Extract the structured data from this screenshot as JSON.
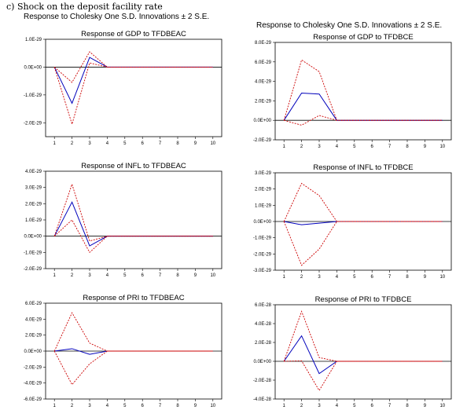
{
  "heading": "c)   Shock on the deposit facility rate",
  "column_headers": [
    "Response to Cholesky One S.D. Innovations ± 2 S.E.",
    "Response to Cholesky One S.D. Innovations ± 2 S.E."
  ],
  "chart_data": [
    {
      "type": "line",
      "title": "Response of GDP to TFDBEAC",
      "x": [
        1,
        2,
        3,
        4,
        5,
        6,
        7,
        8,
        9,
        10
      ],
      "ylim": [
        -2.5e-29,
        1e-29
      ],
      "yticks": [
        1e-29,
        0,
        -1e-29,
        -2e-29
      ],
      "yticklabels": [
        "1.0E-29",
        "0.0E+00",
        "-1.0E-29",
        "-2.0E-29"
      ],
      "series": [
        {
          "color": "#0000bb",
          "style": "solid",
          "values": [
            0,
            -1.3e-29,
            3.5e-30,
            0,
            0,
            0,
            0,
            0,
            0,
            0
          ]
        },
        {
          "color": "#cc0000",
          "style": "dashed",
          "values": [
            0,
            -5.5e-30,
            5.5e-30,
            0,
            0,
            0,
            0,
            0,
            0,
            0
          ]
        },
        {
          "color": "#cc0000",
          "style": "dashed",
          "values": [
            0,
            -2.05e-29,
            1.5e-30,
            0,
            0,
            0,
            0,
            0,
            0,
            0
          ]
        }
      ]
    },
    {
      "type": "line",
      "title": "Response of GDP to TFDBCE",
      "x": [
        1,
        2,
        3,
        4,
        5,
        6,
        7,
        8,
        9,
        10
      ],
      "ylim": [
        -2e-29,
        8e-29
      ],
      "yticks": [
        8e-29,
        6e-29,
        4e-29,
        2e-29,
        0,
        -2e-29
      ],
      "yticklabels": [
        "8.0E-29",
        "6.0E-29",
        "4.0E-29",
        "2.0E-29",
        "0.0E+00",
        "-2.0E-29"
      ],
      "series": [
        {
          "color": "#0000bb",
          "style": "solid",
          "values": [
            0,
            2.8e-29,
            2.7e-29,
            0,
            0,
            0,
            0,
            0,
            0,
            0
          ]
        },
        {
          "color": "#cc0000",
          "style": "dashed",
          "values": [
            0,
            6.2e-29,
            5e-29,
            0,
            0,
            0,
            0,
            0,
            0,
            0
          ]
        },
        {
          "color": "#cc0000",
          "style": "dashed",
          "values": [
            0,
            -5e-30,
            5e-30,
            0,
            0,
            0,
            0,
            0,
            0,
            0
          ]
        }
      ]
    },
    {
      "type": "line",
      "title": "Response of INFL to TFDBEAC",
      "x": [
        1,
        2,
        3,
        4,
        5,
        6,
        7,
        8,
        9,
        10
      ],
      "ylim": [
        -2e-29,
        4e-29
      ],
      "yticks": [
        4e-29,
        3e-29,
        2e-29,
        1e-29,
        0,
        -1e-29,
        -2e-29
      ],
      "yticklabels": [
        "4.0E-29",
        "3.0E-29",
        "2.0E-29",
        "1.0E-29",
        "0.0E+00",
        "-1.0E-29",
        "-2.0E-29"
      ],
      "series": [
        {
          "color": "#0000bb",
          "style": "solid",
          "values": [
            0,
            2.1e-29,
            -6e-30,
            0,
            0,
            0,
            0,
            0,
            0,
            0
          ]
        },
        {
          "color": "#cc0000",
          "style": "dashed",
          "values": [
            0,
            3.2e-29,
            -3e-30,
            0,
            0,
            0,
            0,
            0,
            0,
            0
          ]
        },
        {
          "color": "#cc0000",
          "style": "dashed",
          "values": [
            0,
            1e-29,
            -1e-29,
            0,
            0,
            0,
            0,
            0,
            0,
            0
          ]
        }
      ]
    },
    {
      "type": "line",
      "title": "Response of INFL to TFDBCE",
      "x": [
        1,
        2,
        3,
        4,
        5,
        6,
        7,
        8,
        9,
        10
      ],
      "ylim": [
        -3e-29,
        3e-29
      ],
      "yticks": [
        3e-29,
        2e-29,
        1e-29,
        0,
        -1e-29,
        -2e-29,
        -3e-29
      ],
      "yticklabels": [
        "3.0E-29",
        "2.0E-29",
        "1.0E-29",
        "0.0E+00",
        "-1.0E-29",
        "-2.0E-29",
        "-3.0E-29"
      ],
      "series": [
        {
          "color": "#0000bb",
          "style": "solid",
          "values": [
            0,
            -2e-30,
            -1e-30,
            0,
            0,
            0,
            0,
            0,
            0,
            0
          ]
        },
        {
          "color": "#cc0000",
          "style": "dashed",
          "values": [
            0,
            2.35e-29,
            1.6e-29,
            0,
            0,
            0,
            0,
            0,
            0,
            0
          ]
        },
        {
          "color": "#cc0000",
          "style": "dashed",
          "values": [
            0,
            -2.7e-29,
            -1.7e-29,
            0,
            0,
            0,
            0,
            0,
            0,
            0
          ]
        }
      ]
    },
    {
      "type": "line",
      "title": "Response of PRI to TFDBEAC",
      "x": [
        1,
        2,
        3,
        4,
        5,
        6,
        7,
        8,
        9,
        10
      ],
      "ylim": [
        -6e-29,
        6e-29
      ],
      "yticks": [
        6e-29,
        4e-29,
        2e-29,
        0,
        -2e-29,
        -4e-29,
        -6e-29
      ],
      "yticklabels": [
        "6.0E-29",
        "4.0E-29",
        "2.0E-29",
        "0.0E+00",
        "-2.0E-29",
        "-4.0E-29",
        "-6.0E-29"
      ],
      "series": [
        {
          "color": "#0000bb",
          "style": "solid",
          "values": [
            0,
            3e-30,
            -4e-30,
            0,
            0,
            0,
            0,
            0,
            0,
            0
          ]
        },
        {
          "color": "#cc0000",
          "style": "dashed",
          "values": [
            0,
            4.8e-29,
            1e-29,
            0,
            0,
            0,
            0,
            0,
            0,
            0
          ]
        },
        {
          "color": "#cc0000",
          "style": "dashed",
          "values": [
            0,
            -4.2e-29,
            -1.6e-29,
            0,
            0,
            0,
            0,
            0,
            0,
            0
          ]
        }
      ]
    },
    {
      "type": "line",
      "title": "Response of PRI to TFDBCE",
      "x": [
        1,
        2,
        3,
        4,
        5,
        6,
        7,
        8,
        9,
        10
      ],
      "ylim": [
        -4e-28,
        6e-28
      ],
      "yticks": [
        6e-28,
        4e-28,
        2e-28,
        0,
        -2e-28,
        -4e-28
      ],
      "yticklabels": [
        "6.0E-28",
        "4.0E-28",
        "2.0E-28",
        "0.0E+00",
        "-2.0E-28",
        "-4.0E-28"
      ],
      "series": [
        {
          "color": "#0000bb",
          "style": "solid",
          "values": [
            0,
            2.7e-28,
            -1.3e-28,
            0,
            0,
            0,
            0,
            0,
            0,
            0
          ]
        },
        {
          "color": "#cc0000",
          "style": "dashed",
          "values": [
            0,
            5.3e-28,
            4e-29,
            0,
            0,
            0,
            0,
            0,
            0,
            0
          ]
        },
        {
          "color": "#cc0000",
          "style": "dashed",
          "values": [
            0,
            5e-30,
            -3.1e-28,
            0,
            0,
            0,
            0,
            0,
            0,
            0
          ]
        }
      ]
    }
  ]
}
